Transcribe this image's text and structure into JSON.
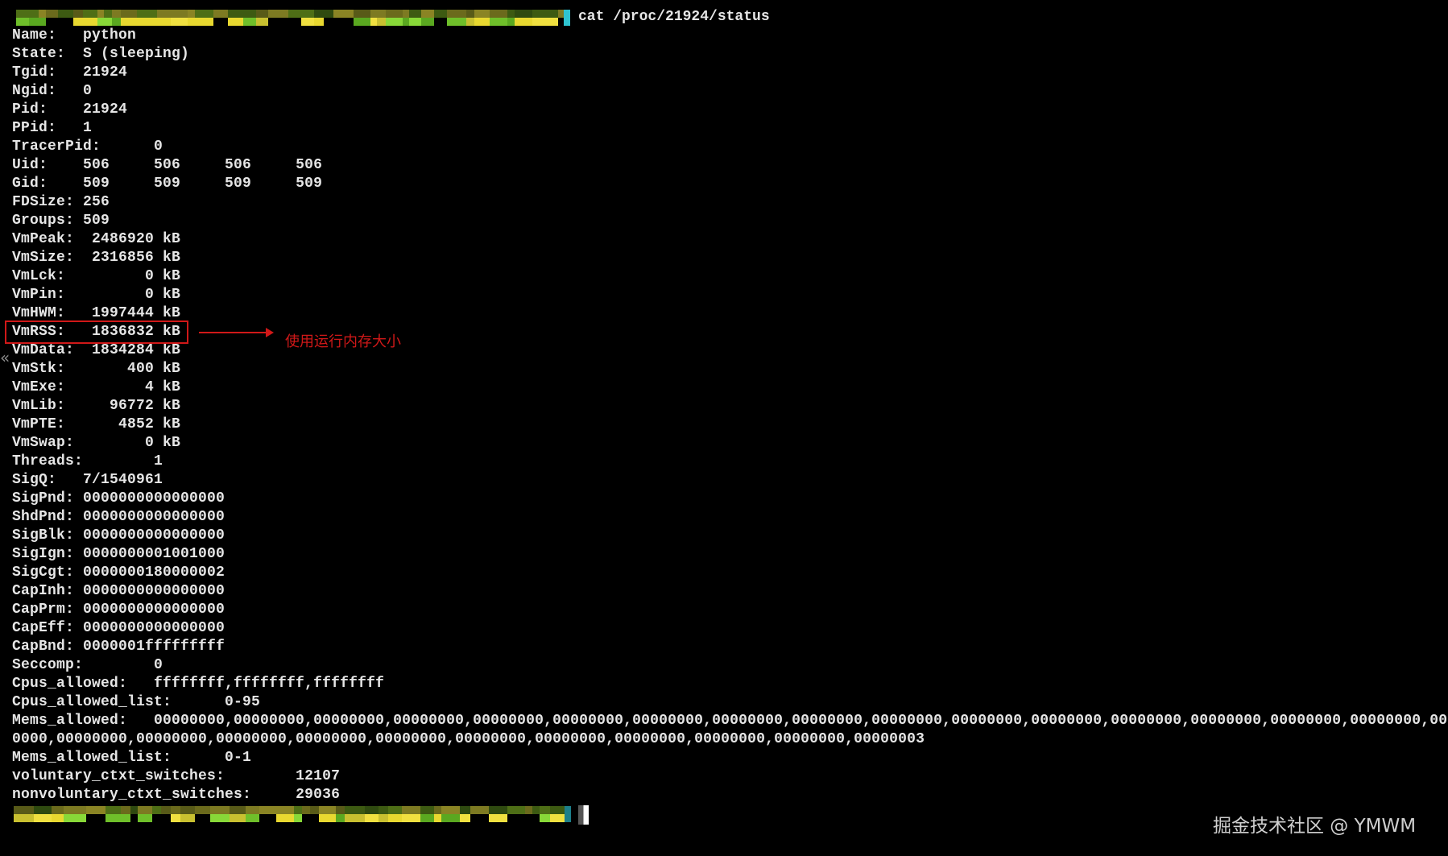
{
  "terminal": {
    "command": "cat /proc/21924/status",
    "lines": [
      [
        "Name:",
        "python"
      ],
      [
        "State:",
        "S (sleeping)"
      ],
      [
        "Tgid:",
        "21924"
      ],
      [
        "Ngid:",
        "0"
      ],
      [
        "Pid:",
        "21924"
      ],
      [
        "PPid:",
        "1"
      ],
      [
        "TracerPid:",
        "0"
      ],
      [
        "Uid:",
        "506\t506\t506\t506"
      ],
      [
        "Gid:",
        "509\t509\t509\t509"
      ],
      [
        "FDSize:",
        "256"
      ],
      [
        "Groups:",
        "509"
      ],
      [
        "VmPeak:",
        " 2486920 kB"
      ],
      [
        "VmSize:",
        " 2316856 kB"
      ],
      [
        "VmLck:",
        "       0 kB"
      ],
      [
        "VmPin:",
        "       0 kB"
      ],
      [
        "VmHWM:",
        " 1997444 kB"
      ],
      [
        "VmRSS:",
        " 1836832 kB"
      ],
      [
        "VmData:",
        " 1834284 kB"
      ],
      [
        "VmStk:",
        "     400 kB"
      ],
      [
        "VmExe:",
        "       4 kB"
      ],
      [
        "VmLib:",
        "   96772 kB"
      ],
      [
        "VmPTE:",
        "    4852 kB"
      ],
      [
        "VmSwap:",
        "       0 kB"
      ],
      [
        "Threads:",
        "1"
      ],
      [
        "SigQ:",
        "7/1540961"
      ],
      [
        "SigPnd:",
        "0000000000000000"
      ],
      [
        "ShdPnd:",
        "0000000000000000"
      ],
      [
        "SigBlk:",
        "0000000000000000"
      ],
      [
        "SigIgn:",
        "0000000001001000"
      ],
      [
        "SigCgt:",
        "0000000180000002"
      ],
      [
        "CapInh:",
        "0000000000000000"
      ],
      [
        "CapPrm:",
        "0000000000000000"
      ],
      [
        "CapEff:",
        "0000000000000000"
      ],
      [
        "CapBnd:",
        "0000001fffffffff"
      ],
      [
        "Seccomp:",
        "0"
      ],
      [
        "Cpus_allowed:",
        "ffffffff,ffffffff,ffffffff"
      ],
      [
        "Cpus_allowed_list:",
        "0-95"
      ],
      [
        "Mems_allowed:",
        "00000000,00000000,00000000,00000000,00000000,00000000,00000000,00000000,00000000,00000000,00000000,00000000,00000000,00000000,00000000,00000000,00"
      ],
      [
        "",
        "0000,00000000,00000000,00000000,00000000,00000000,00000000,00000000,00000000,00000000,00000000,00000003"
      ],
      [
        "Mems_allowed_list:",
        "0-1"
      ],
      [
        "voluntary_ctxt_switches:",
        "12107"
      ],
      [
        "nonvoluntary_ctxt_switches:",
        "29036"
      ]
    ]
  },
  "annotation": {
    "label": "使用运行内存大小",
    "color": "#d01818"
  },
  "watermark": "掘金技术社区 @ YMWM"
}
